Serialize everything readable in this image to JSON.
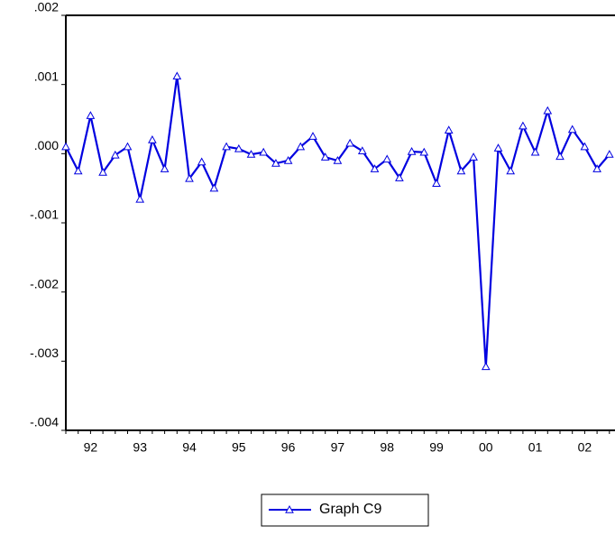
{
  "chart_data": {
    "type": "line",
    "categories": [
      null,
      null,
      "92",
      null,
      null,
      null,
      "93",
      null,
      null,
      null,
      "94",
      null,
      null,
      null,
      "95",
      null,
      null,
      null,
      "96",
      null,
      null,
      null,
      "97",
      null,
      null,
      null,
      "98",
      null,
      null,
      null,
      "99",
      null,
      null,
      null,
      "00",
      null,
      null,
      null,
      "01",
      null,
      null,
      null,
      "02",
      null,
      null
    ],
    "series": [
      {
        "name": "Graph C9",
        "color": "#0000e0",
        "marker": "triangle",
        "values": [
          0.0001,
          -0.00025,
          0.00055,
          -0.00027,
          -2e-05,
          0.0001,
          -0.00066,
          0.0002,
          -0.00022,
          0.00112,
          -0.00036,
          -0.00012,
          -0.0005,
          0.0001,
          7e-05,
          -1e-05,
          2e-05,
          -0.00014,
          -0.0001,
          0.0001,
          0.00025,
          -5e-05,
          -0.0001,
          0.00015,
          4e-05,
          -0.00022,
          -8e-05,
          -0.00035,
          3e-05,
          2e-05,
          -0.00043,
          0.00034,
          -0.00025,
          -5e-05,
          -0.00308,
          8e-05,
          -0.00025,
          0.0004,
          2e-05,
          0.00062,
          -4e-05,
          0.00035,
          0.0001,
          -0.00022,
          -1e-05
        ]
      }
    ],
    "ylim": [
      -0.004,
      0.002
    ],
    "yticks": [
      {
        "value": -0.004,
        "label": "-.004"
      },
      {
        "value": -0.003,
        "label": "-.003"
      },
      {
        "value": -0.002,
        "label": "-.002"
      },
      {
        "value": -0.001,
        "label": "-.001"
      },
      {
        "value": 0,
        "label": ".000"
      },
      {
        "value": 0.001,
        "label": ".001"
      },
      {
        "value": 0.002,
        "label": ".002"
      }
    ],
    "grid": false,
    "legend": "bottom"
  }
}
